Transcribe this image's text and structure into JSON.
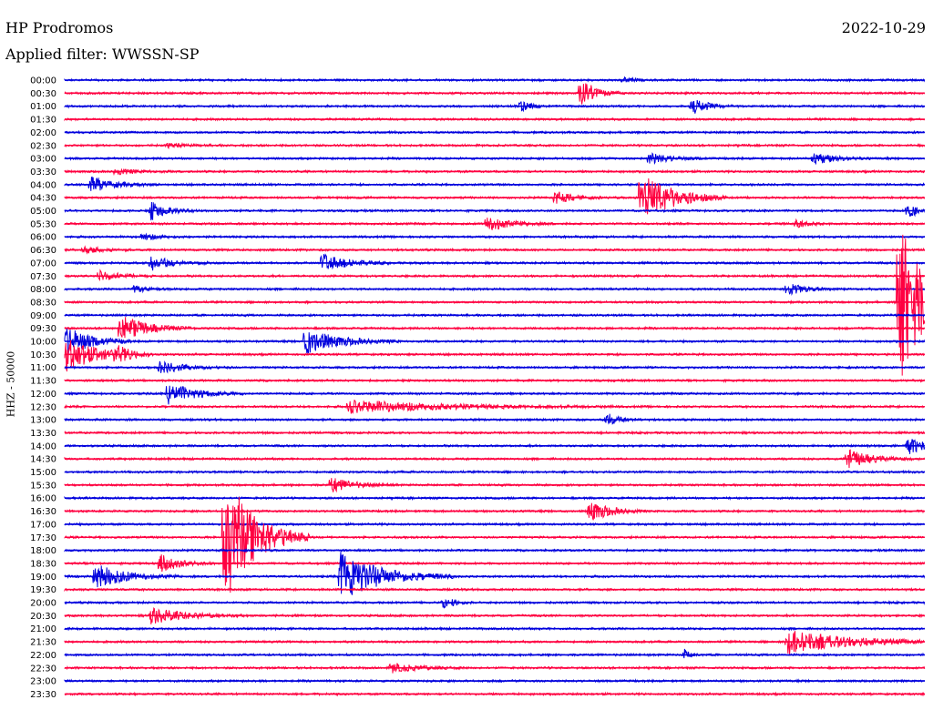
{
  "header": {
    "station": "HP Prodromos",
    "date": "2022-10-29",
    "filter": "Applied filter: WWSSN-SP"
  },
  "chart_data": {
    "type": "line",
    "ylabel": "HHZ - 50000",
    "colors": [
      "#0000dd",
      "#ff0040"
    ],
    "row_labels": [
      "00:00",
      "00:30",
      "01:00",
      "01:30",
      "02:00",
      "02:30",
      "03:00",
      "03:30",
      "04:00",
      "04:30",
      "05:00",
      "05:30",
      "06:00",
      "06:30",
      "07:00",
      "07:30",
      "08:00",
      "08:30",
      "09:00",
      "09:30",
      "10:00",
      "10:30",
      "11:00",
      "11:30",
      "12:00",
      "12:30",
      "13:00",
      "13:30",
      "14:00",
      "14:30",
      "15:00",
      "15:30",
      "16:00",
      "16:30",
      "17:00",
      "17:30",
      "18:00",
      "18:30",
      "19:00",
      "19:30",
      "20:00",
      "20:30",
      "21:00",
      "21:30",
      "22:00",
      "22:30",
      "23:00",
      "23:30"
    ],
    "events": [
      {
        "row": 0,
        "x": 0.65,
        "amp": 3,
        "dur": 0.015
      },
      {
        "row": 1,
        "x": 0.6,
        "amp": 18,
        "dur": 0.02
      },
      {
        "row": 2,
        "x": 0.53,
        "amp": 6,
        "dur": 0.015
      },
      {
        "row": 2,
        "x": 0.73,
        "amp": 8,
        "dur": 0.025
      },
      {
        "row": 5,
        "x": 0.12,
        "amp": 2,
        "dur": 0.03
      },
      {
        "row": 6,
        "x": 0.68,
        "amp": 6,
        "dur": 0.03
      },
      {
        "row": 6,
        "x": 0.87,
        "amp": 7,
        "dur": 0.03
      },
      {
        "row": 7,
        "x": 0.06,
        "amp": 3,
        "dur": 0.03
      },
      {
        "row": 8,
        "x": 0.03,
        "amp": 8,
        "dur": 0.035
      },
      {
        "row": 9,
        "x": 0.57,
        "amp": 7,
        "dur": 0.025
      },
      {
        "row": 9,
        "x": 0.67,
        "amp": 30,
        "dur": 0.045
      },
      {
        "row": 10,
        "x": 0.1,
        "amp": 10,
        "dur": 0.025
      },
      {
        "row": 10,
        "x": 0.98,
        "amp": 6,
        "dur": 0.03
      },
      {
        "row": 11,
        "x": 0.49,
        "amp": 9,
        "dur": 0.035
      },
      {
        "row": 11,
        "x": 0.85,
        "amp": 4,
        "dur": 0.02
      },
      {
        "row": 12,
        "x": 0.09,
        "amp": 4,
        "dur": 0.02
      },
      {
        "row": 13,
        "x": 0.02,
        "amp": 4,
        "dur": 0.03
      },
      {
        "row": 14,
        "x": 0.1,
        "amp": 8,
        "dur": 0.03
      },
      {
        "row": 14,
        "x": 0.3,
        "amp": 10,
        "dur": 0.035
      },
      {
        "row": 15,
        "x": 0.04,
        "amp": 6,
        "dur": 0.03
      },
      {
        "row": 16,
        "x": 0.08,
        "amp": 4,
        "dur": 0.02
      },
      {
        "row": 16,
        "x": 0.84,
        "amp": 7,
        "dur": 0.025
      },
      {
        "row": 17,
        "x": 0.97,
        "amp": 120,
        "dur": 0.03
      },
      {
        "row": 19,
        "x": 0.065,
        "amp": 14,
        "dur": 0.04
      },
      {
        "row": 20,
        "x": 0.0,
        "amp": 18,
        "dur": 0.035
      },
      {
        "row": 20,
        "x": 0.28,
        "amp": 14,
        "dur": 0.05
      },
      {
        "row": 21,
        "x": 0.0,
        "amp": 20,
        "dur": 0.045
      },
      {
        "row": 21,
        "x": 0.06,
        "amp": 8,
        "dur": 0.02
      },
      {
        "row": 22,
        "x": 0.11,
        "amp": 6,
        "dur": 0.04
      },
      {
        "row": 24,
        "x": 0.12,
        "amp": 12,
        "dur": 0.04
      },
      {
        "row": 25,
        "x": 0.33,
        "amp": 7,
        "dur": 0.14
      },
      {
        "row": 26,
        "x": 0.63,
        "amp": 7,
        "dur": 0.02
      },
      {
        "row": 28,
        "x": 0.98,
        "amp": 10,
        "dur": 0.025
      },
      {
        "row": 29,
        "x": 0.91,
        "amp": 10,
        "dur": 0.035
      },
      {
        "row": 31,
        "x": 0.31,
        "amp": 8,
        "dur": 0.035
      },
      {
        "row": 33,
        "x": 0.61,
        "amp": 12,
        "dur": 0.03
      },
      {
        "row": 35,
        "x": 0.185,
        "amp": 75,
        "dur": 0.045
      },
      {
        "row": 37,
        "x": 0.11,
        "amp": 10,
        "dur": 0.03
      },
      {
        "row": 38,
        "x": 0.035,
        "amp": 14,
        "dur": 0.045
      },
      {
        "row": 38,
        "x": 0.32,
        "amp": 28,
        "dur": 0.06
      },
      {
        "row": 40,
        "x": 0.44,
        "amp": 7,
        "dur": 0.015
      },
      {
        "row": 41,
        "x": 0.1,
        "amp": 9,
        "dur": 0.05
      },
      {
        "row": 43,
        "x": 0.84,
        "amp": 14,
        "dur": 0.09
      },
      {
        "row": 44,
        "x": 0.72,
        "amp": 6,
        "dur": 0.01
      },
      {
        "row": 45,
        "x": 0.38,
        "amp": 5,
        "dur": 0.04
      }
    ]
  }
}
